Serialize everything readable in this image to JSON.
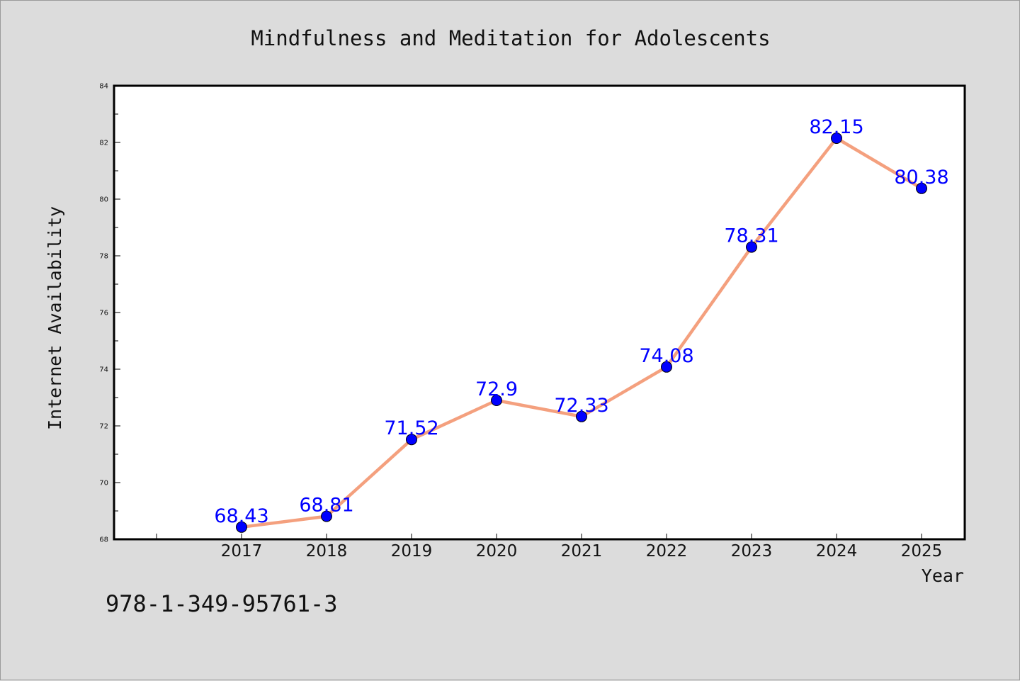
{
  "isbn": "978-1-349-95761-3",
  "chart_data": {
    "type": "line",
    "title": "Mindfulness and Meditation for Adolescents",
    "xlabel": "Year",
    "ylabel": "Internet Availability",
    "categories": [
      "2017",
      "2018",
      "2019",
      "2020",
      "2021",
      "2022",
      "2023",
      "2024",
      "2025"
    ],
    "values": [
      68.43,
      68.81,
      71.52,
      72.9,
      72.33,
      74.08,
      78.31,
      82.15,
      80.38
    ],
    "data_labels": [
      "68.43",
      "68.81",
      "71.52",
      "72.9",
      "72.33",
      "74.08",
      "78.31",
      "82.15",
      "80.38"
    ],
    "ylim": [
      68,
      84
    ],
    "yticks": [
      "68",
      "70",
      "72",
      "74",
      "76",
      "78",
      "80",
      "82",
      "84"
    ],
    "grid": false,
    "line_color": "#f4a07e",
    "marker_color": "#0000ff",
    "label_color": "#0000ff"
  }
}
